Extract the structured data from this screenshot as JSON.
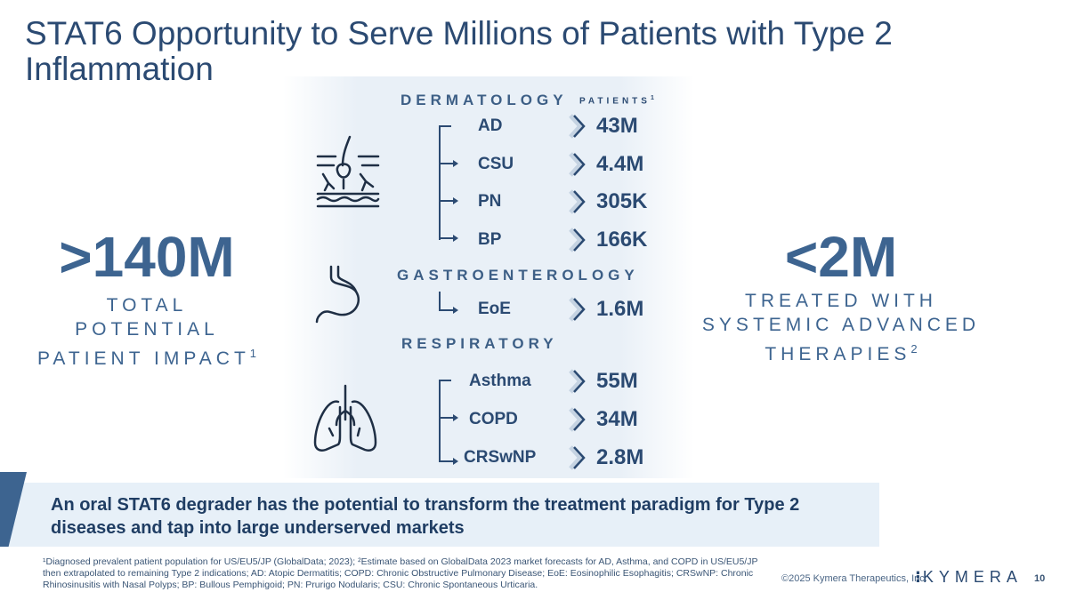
{
  "title": "STAT6 Opportunity to Serve Millions of Patients with Type 2 Inflammation",
  "left_stat": {
    "value": ">140M",
    "label_lines": [
      "TOTAL",
      "POTENTIAL",
      "PATIENT IMPACT"
    ],
    "superscript": "1"
  },
  "right_stat": {
    "value": "<2M",
    "label_lines": [
      "TREATED WITH",
      "SYSTEMIC ADVANCED",
      "THERAPIES"
    ],
    "superscript": "2"
  },
  "patients_header": {
    "label": "PATIENTS",
    "superscript": "1"
  },
  "sections": [
    {
      "name": "DERMATOLOGY",
      "icon": "skin-icon",
      "items": [
        {
          "indication": "AD",
          "patients": "43M"
        },
        {
          "indication": "CSU",
          "patients": "4.4M"
        },
        {
          "indication": "PN",
          "patients": "305K"
        },
        {
          "indication": "BP",
          "patients": "166K"
        }
      ]
    },
    {
      "name": "GASTROENTEROLOGY",
      "icon": "stomach-icon",
      "items": [
        {
          "indication": "EoE",
          "patients": "1.6M"
        }
      ]
    },
    {
      "name": "RESPIRATORY",
      "icon": "lungs-icon",
      "items": [
        {
          "indication": "Asthma",
          "patients": "55M"
        },
        {
          "indication": "COPD",
          "patients": "34M"
        },
        {
          "indication": "CRSwNP",
          "patients": "2.8M"
        }
      ]
    }
  ],
  "callout": "An oral STAT6 degrader has the potential to transform the treatment paradigm for Type 2 diseases and tap into large underserved markets",
  "footnote": "¹Diagnosed prevalent patient population for US/EU5/JP (GlobalData; 2023); ²Estimate based on GlobalData 2023 market forecasts for AD, Asthma, and COPD in US/EU5/JP then extrapolated to remaining Type 2 indications; AD: Atopic Dermatitis; COPD: Chronic Obstructive Pulmonary Disease; EoE: Eosinophilic Esophagitis; CRSwNP: Chronic Rhinosinusitis with Nasal Polyps; BP: Bullous Pemphigoid; PN: Prurigo Nodularis; CSU: Chronic Spontaneous Urticaria.",
  "copyright": "©2025 Kymera Therapeutics, Inc.",
  "logo_text": "KYMERA",
  "page_number": "10",
  "colors": {
    "primary": "#2b4a72",
    "accent": "#3d6490",
    "panel": "#e9f0f7",
    "callout_bg": "#e7f0f8"
  }
}
